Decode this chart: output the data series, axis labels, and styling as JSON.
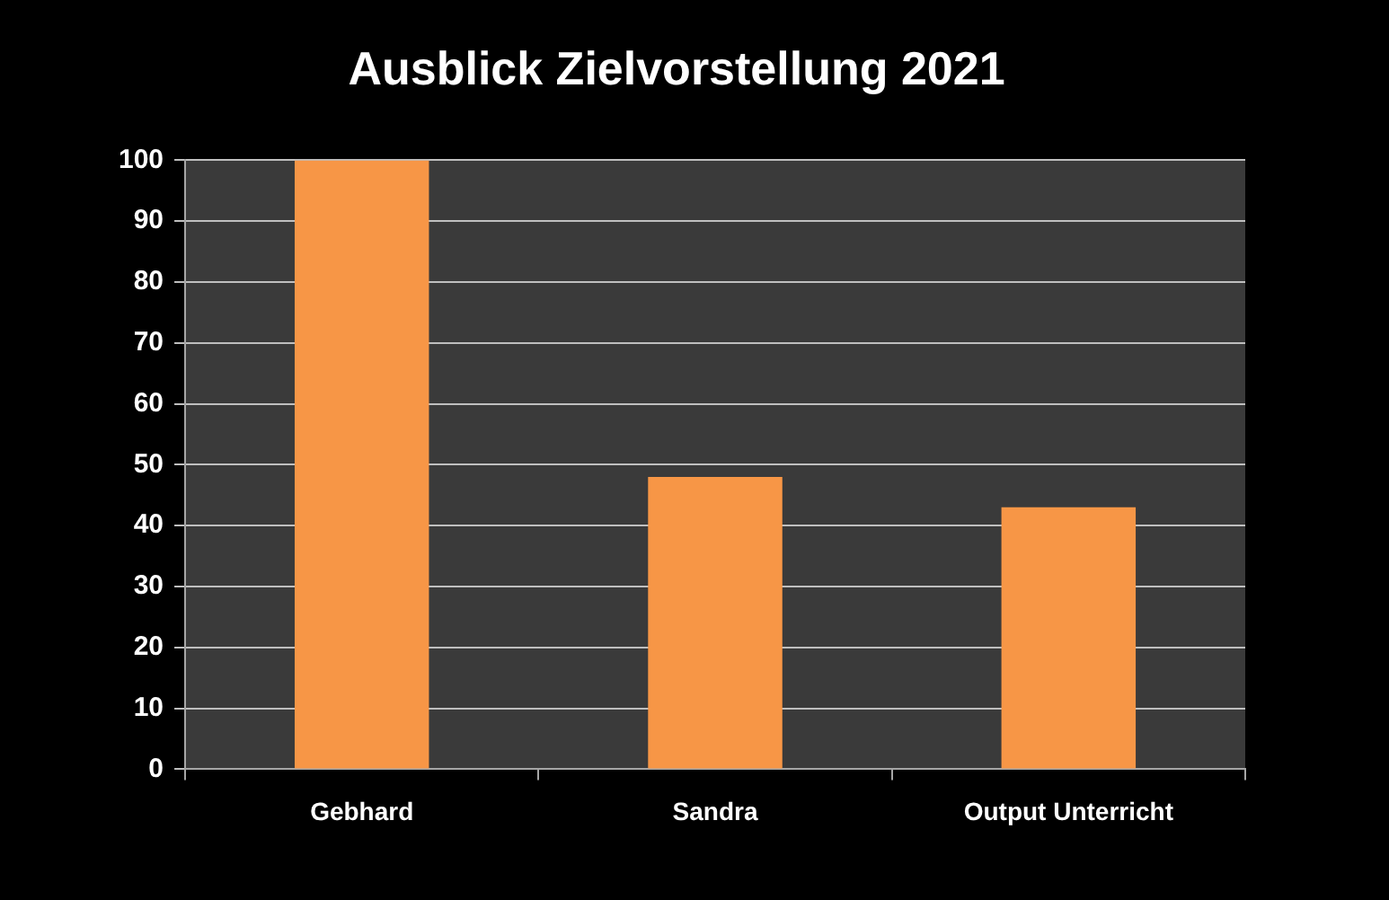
{
  "chart_data": {
    "type": "bar",
    "title": "Ausblick Zielvorstellung 2021",
    "categories": [
      "Gebhard",
      "Sandra",
      "Output Unterricht"
    ],
    "values": [
      100,
      48,
      43
    ],
    "color": "#f79646",
    "ylim": [
      0,
      100
    ],
    "yticks": [
      0,
      10,
      20,
      30,
      40,
      50,
      60,
      70,
      80,
      90,
      100
    ],
    "grid": "y"
  }
}
